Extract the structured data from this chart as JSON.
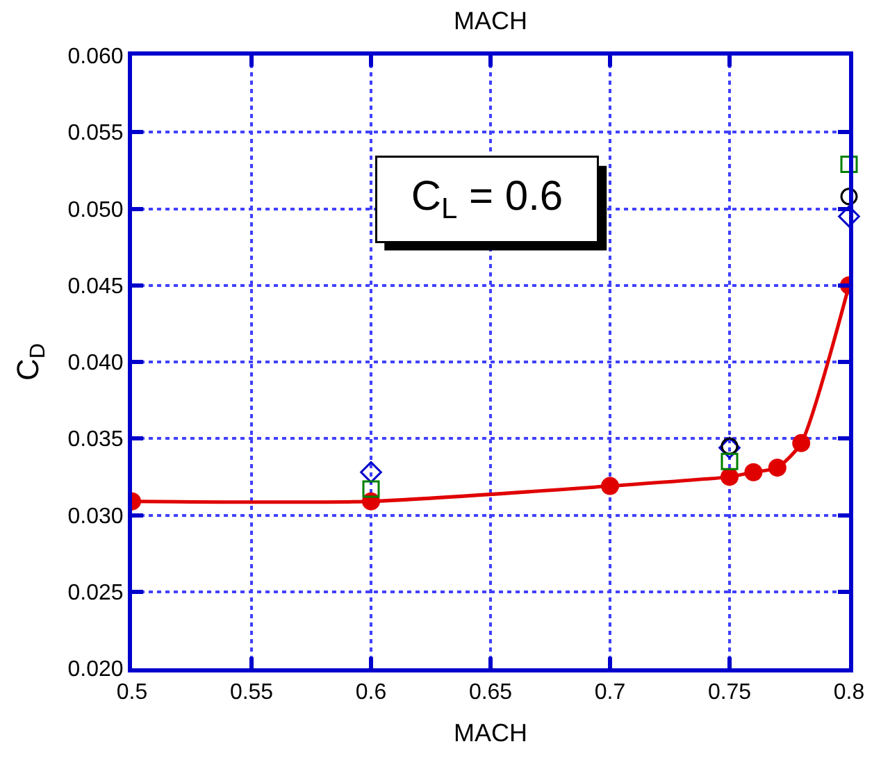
{
  "chart_data": {
    "type": "scatter",
    "title": "MACH",
    "xlabel": "MACH",
    "ylabel": "C$_{D}$",
    "xlim": [
      0.5,
      0.8
    ],
    "xticks": [
      0.5,
      0.55,
      0.6,
      0.65,
      0.7,
      0.75,
      0.8
    ],
    "ylim": [
      0.02,
      0.06
    ],
    "yticks": [
      {
        "value": 0.02,
        "label": "0.020"
      },
      {
        "value": 0.025,
        "label": "0.025"
      },
      {
        "value": 0.03,
        "label": "0.030"
      },
      {
        "value": 0.035,
        "label": "0.035"
      },
      {
        "value": 0.04,
        "label": "0.040"
      },
      {
        "value": 0.045,
        "label": "0.045"
      },
      {
        "value": 0.05,
        "label": "0.050"
      },
      {
        "value": 0.055,
        "label": "0.055"
      },
      {
        "value": 0.06,
        "label": "0.060"
      }
    ],
    "grid": true,
    "annotations": [
      "C$_{L}$ = 0.6"
    ],
    "series": [
      {
        "type": "line",
        "color": "#e00000",
        "marker": "circle",
        "line_style": "solid",
        "x": [
          0.5,
          0.6,
          0.7,
          0.75,
          0.76,
          0.77,
          0.78,
          0.8
        ],
        "values": [
          0.0309,
          0.0309,
          0.0319,
          0.0325,
          0.0328,
          0.0331,
          0.0347,
          0.045
        ]
      },
      {
        "color": "#0000cc",
        "marker": "diamond",
        "x": [
          0.6,
          0.75,
          0.8
        ],
        "values": [
          0.0328,
          0.0344,
          0.0495
        ]
      },
      {
        "color": "#000000",
        "marker": "circle",
        "x": [
          0.75,
          0.8
        ],
        "values": [
          0.0345,
          0.0508
        ]
      },
      {
        "color": "#008000",
        "marker": "square",
        "x": [
          0.6,
          0.75,
          0.8
        ],
        "values": [
          0.0317,
          0.0335,
          0.0529
        ]
      }
    ]
  }
}
